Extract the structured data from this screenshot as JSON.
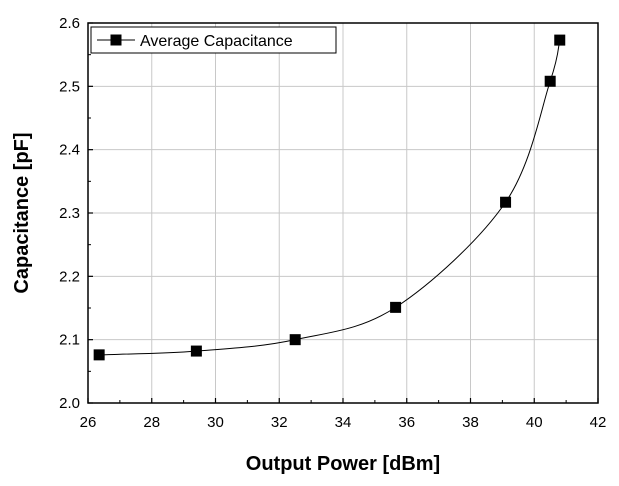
{
  "chart_data": {
    "type": "line",
    "xlabel": "Output Power [dBm]",
    "ylabel": "Capacitance [pF]",
    "xlim": [
      26,
      42
    ],
    "ylim": [
      2.0,
      2.6
    ],
    "xticks": [
      26,
      28,
      30,
      32,
      34,
      36,
      38,
      40,
      42
    ],
    "yticks": [
      2.0,
      2.1,
      2.2,
      2.3,
      2.4,
      2.5,
      2.6
    ],
    "grid": true,
    "legend_position": "top-left",
    "series": [
      {
        "name": "Average Capacitance",
        "marker": "square",
        "color": "#000000",
        "x": [
          26.35,
          29.4,
          32.5,
          35.65,
          39.1,
          40.5,
          40.8
        ],
        "y": [
          2.076,
          2.082,
          2.1,
          2.151,
          2.317,
          2.508,
          2.573
        ]
      }
    ]
  }
}
